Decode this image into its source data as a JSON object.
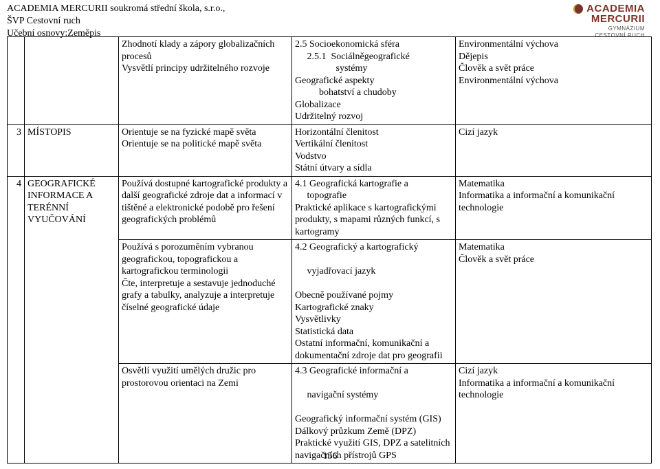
{
  "header": {
    "line1": "ACADEMIA MERCURII  soukromá střední škola, s.r.o.,",
    "line2": "ŠVP Cestovní ruch",
    "line3": "Učební osnovy:Zeměpis"
  },
  "logo": {
    "name": "ACADEMIA",
    "name2": "MERCURII",
    "sub1": "GYMNÁZIUM",
    "sub2": "CESTOVNÍ RUCH"
  },
  "page_number": "156",
  "rows": [
    {
      "c1": "",
      "c2": "",
      "c3": "Zhodnotí klady a zápory globalizačních procesů\nVysvětlí principy udržitelného rozvoje",
      "c4": "2.5 Socioekonomická sféra\n     2.5.1  Sociálněgeografické\n                 systémy\nGeografické aspekty\n          bohatství a chudoby\nGlobalizace\nUdržitelný rozvoj",
      "c5": "Environmentální výchova\nDějepis\nČlověk a svět práce\nEnvironmentální výchova"
    },
    {
      "c1": "3",
      "c2": "MÍSTOPIS",
      "c3": "Orientuje se na fyzické mapě světa\nOrientuje se na politické mapě světa",
      "c4": "Horizontální členitost\nVertikální členitost\nVodstvo\nStátní útvary a sídla",
      "c5": "Cizí jazyk"
    },
    {
      "c1": "4",
      "c2": "GEOGRAFICKÉ INFORMACE A TERÉNNÍ VYUČOVÁNÍ",
      "c3": "Používá dostupné kartografické produkty a další geografické zdroje dat a informací v tištěné a elektronické podobě pro řešení geografických problémů",
      "c4": "4.1 Geografická kartografie a\n     topografie\nPraktické aplikace s kartografickými produkty, s mapami různých funkcí, s kartogramy",
      "c5": "Matematika\nInformatika a informační a komunikační technologie",
      "no_bottom_12": true
    },
    {
      "c1": "",
      "c2": "",
      "c3": "Používá s porozuměním vybranou geografickou, topografickou a kartografickou terminologii\nČte, interpretuje a sestavuje jednoduché grafy a tabulky, analyzuje a interpretuje číselné geografické údaje",
      "c4": "4.2 Geografický a kartografický\n\n     vyjadřovací jazyk\n\nObecně používané pojmy\nKartografické znaky\nVysvětlivky\nStatistická data\nOstatní informační, komunikační a dokumentační zdroje dat pro geografii",
      "c5": "Matematika\nČlověk a svět práce",
      "merged_12": true
    },
    {
      "c1": "",
      "c2": "",
      "c3": "Osvětlí využití umělých družic pro prostorovou orientaci na Zemi",
      "c4": "4.3 Geografické informační a\n\n     navigační systémy\n\nGeografický informační systém (GIS)\nDálkový průzkum Země (DPZ)\nPraktické využití GIS, DPZ a satelitních navigačních přístrojů GPS",
      "c5": "Cizí jazyk\nInformatika a informační a komunikační technologie",
      "merged_12": true
    }
  ]
}
